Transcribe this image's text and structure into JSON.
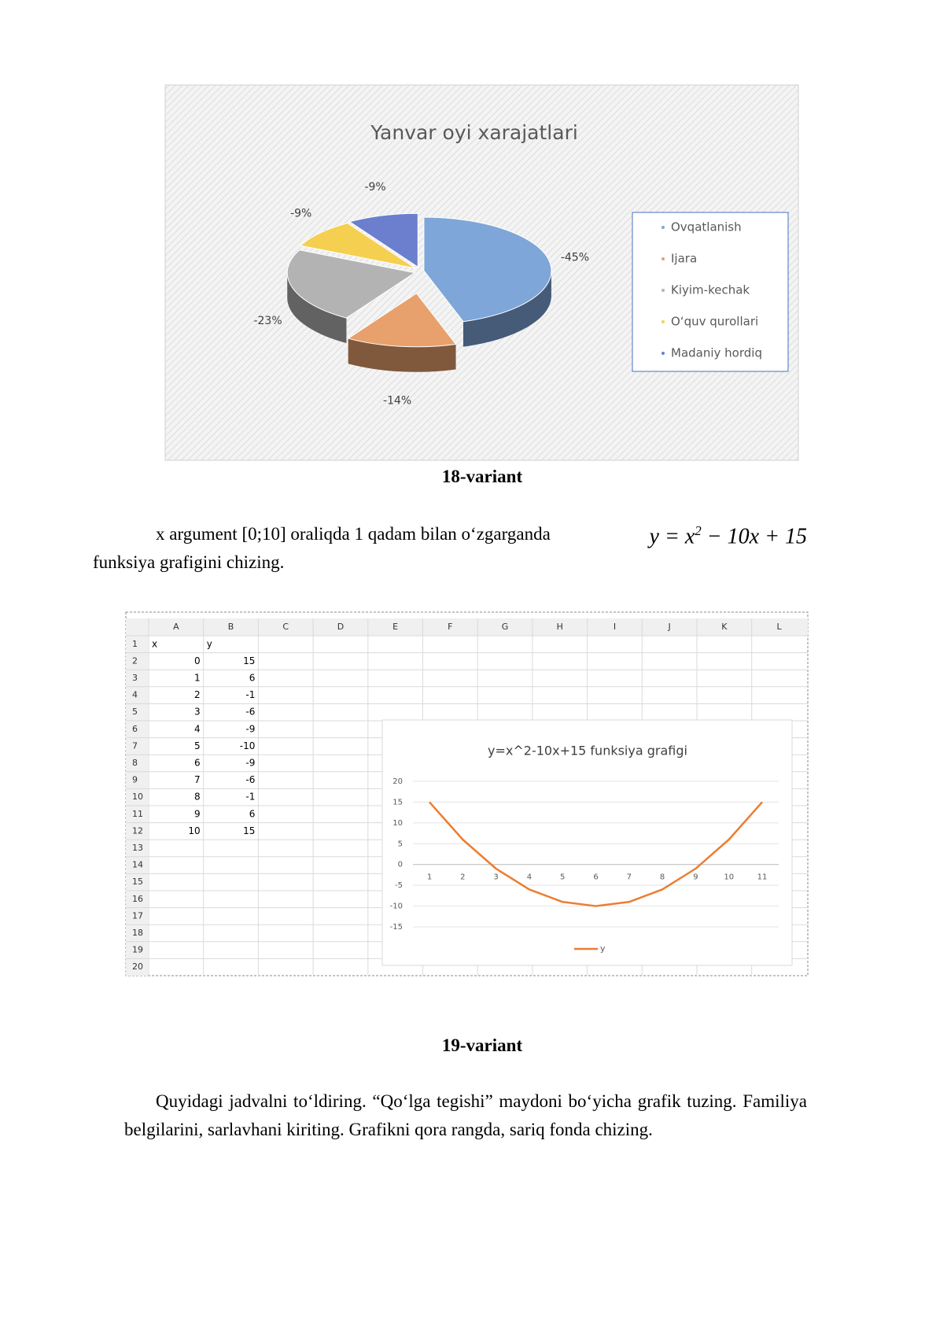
{
  "chart_data": [
    {
      "type": "pie",
      "title": "Yanvar oyi xarajatlari",
      "categories": [
        "Ovqatlanish",
        "Ijara",
        "Kiyim-kechak",
        "O‘quv qurollari",
        "Madaniy hordiq"
      ],
      "values": [
        -45,
        -14,
        -23,
        -9,
        -9
      ],
      "value_labels": [
        "-45%",
        "-14%",
        "-23%",
        "-9%",
        "-9%"
      ],
      "colors": [
        "#7ea6d8",
        "#e8a06c",
        "#b3b3b3",
        "#f5cf4f",
        "#6b7fce"
      ],
      "legend": "right"
    },
    {
      "type": "line",
      "title": "y=x^2-10x+15 funksiya grafigi",
      "categories": [
        1,
        2,
        3,
        4,
        5,
        6,
        7,
        8,
        9,
        10,
        11
      ],
      "series": [
        {
          "name": "y",
          "color": "#ed7d31",
          "values": [
            15,
            6,
            -1,
            -6,
            -9,
            -10,
            -9,
            -6,
            -1,
            6,
            15
          ]
        }
      ],
      "ylim": [
        -15,
        20
      ],
      "yticks": [
        -15,
        -10,
        -5,
        0,
        5,
        10,
        15,
        20
      ],
      "grid": true,
      "legend": "bottom"
    }
  ],
  "document": {
    "caption_1": "18-variant",
    "task_1": {
      "text_before": "x argument [0;10] oraliqda 1 qadam bilan o‘zgarganda",
      "formula_base": "y = x",
      "formula_exponent": "2",
      "formula_rest": " − 10x + 15",
      "text_after": "funksiya grafigini chizing."
    },
    "caption_2": "19-variant",
    "task_2": "Quyidagi jadvalni to‘ldiring. “Qo‘lga tegishi” maydoni bo‘yicha grafik tuzing. Familiya belgilarini, sarlavhani kiriting. Grafikni qora rangda, sariq fonda chizing."
  },
  "spreadsheet": {
    "columns": [
      "A",
      "B",
      "C",
      "D",
      "E",
      "F",
      "G",
      "H",
      "I",
      "J",
      "K",
      "L"
    ],
    "rows": [
      1,
      2,
      3,
      4,
      5,
      6,
      7,
      8,
      9,
      10,
      11,
      12,
      13,
      14,
      15,
      16,
      17,
      18,
      19,
      20
    ],
    "cells": [
      [
        "x",
        "y"
      ],
      [
        0,
        15
      ],
      [
        1,
        6
      ],
      [
        2,
        -1
      ],
      [
        3,
        -6
      ],
      [
        4,
        -9
      ],
      [
        5,
        -10
      ],
      [
        6,
        -9
      ],
      [
        7,
        -6
      ],
      [
        8,
        -1
      ],
      [
        9,
        6
      ],
      [
        10,
        15
      ]
    ]
  }
}
